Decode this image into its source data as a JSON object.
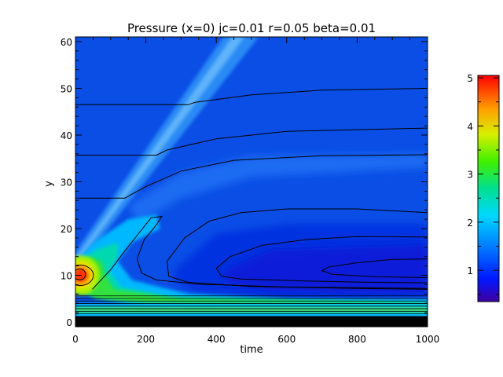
{
  "chart_data": {
    "type": "heatmap",
    "title": "Pressure (x=0) jc=0.01 r=0.05 beta=0.01",
    "xlabel": "time",
    "ylabel": "y",
    "xlim": [
      0,
      1000
    ],
    "ylim": [
      -1,
      61
    ],
    "x_ticks": [
      0,
      200,
      400,
      600,
      800,
      1000
    ],
    "x_tick_labels": [
      "0",
      "200",
      "400",
      "600",
      "800",
      "1000"
    ],
    "y_ticks": [
      0,
      10,
      20,
      30,
      40,
      50,
      60
    ],
    "y_tick_labels": [
      "0",
      "10",
      "20",
      "30",
      "40",
      "50",
      "60"
    ],
    "colorbar": {
      "range": [
        0.35,
        5.05
      ],
      "ticks": [
        1,
        2,
        3,
        4,
        5
      ],
      "tick_labels": [
        "1",
        "2",
        "3",
        "4",
        "5"
      ],
      "colormap": "rainbow (purple-blue-cyan-green-yellow-red)"
    },
    "background_value": 0.75,
    "features": {
      "peak": {
        "x": 15,
        "y": 10,
        "value": 5.0
      },
      "wavefront": {
        "from": [
          0,
          13
        ],
        "to": [
          470,
          61
        ],
        "value": 1.2
      },
      "green_lobe": {
        "x_range": [
          0,
          250
        ],
        "y_range": [
          4,
          22
        ],
        "value": 2.4
      },
      "bottom_band": {
        "y_range": [
          1,
          7
        ],
        "value": 2.0
      },
      "trough": {
        "x": 800,
        "y": 11,
        "value": 0.55
      }
    },
    "contour_levels": [
      "y≈46.5",
      "y≈35.7",
      "y≈26.5",
      "lobe",
      "y≈18",
      "y≈11",
      "bottom"
    ]
  }
}
